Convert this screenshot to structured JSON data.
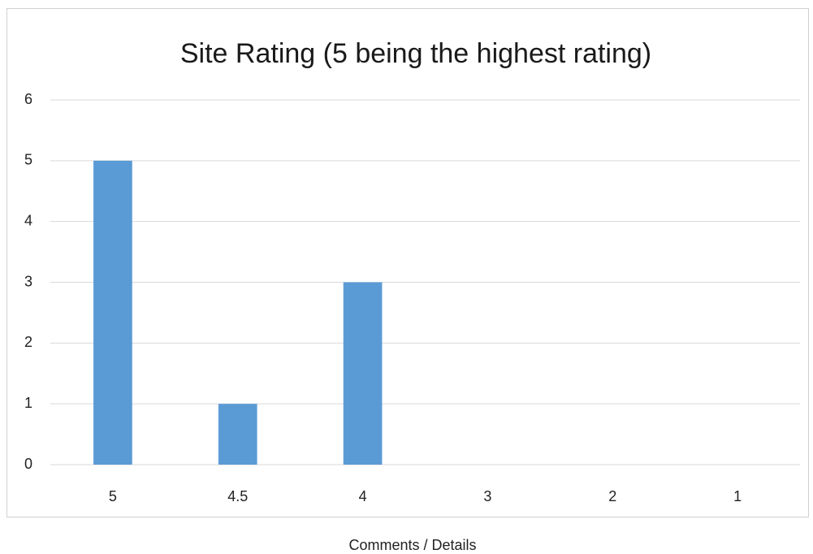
{
  "chart_data": {
    "type": "bar",
    "title": "Site Rating (5 being the highest rating)",
    "categories": [
      "5",
      "4.5",
      "4",
      "3",
      "2",
      "1"
    ],
    "values": [
      5,
      1,
      3,
      0,
      0,
      0
    ],
    "color": "#5b9bd5",
    "ylim": [
      0,
      6
    ],
    "yticks": [
      0,
      1,
      2,
      3,
      4,
      5,
      6
    ],
    "grid": true
  },
  "caption": "Comments / Details"
}
